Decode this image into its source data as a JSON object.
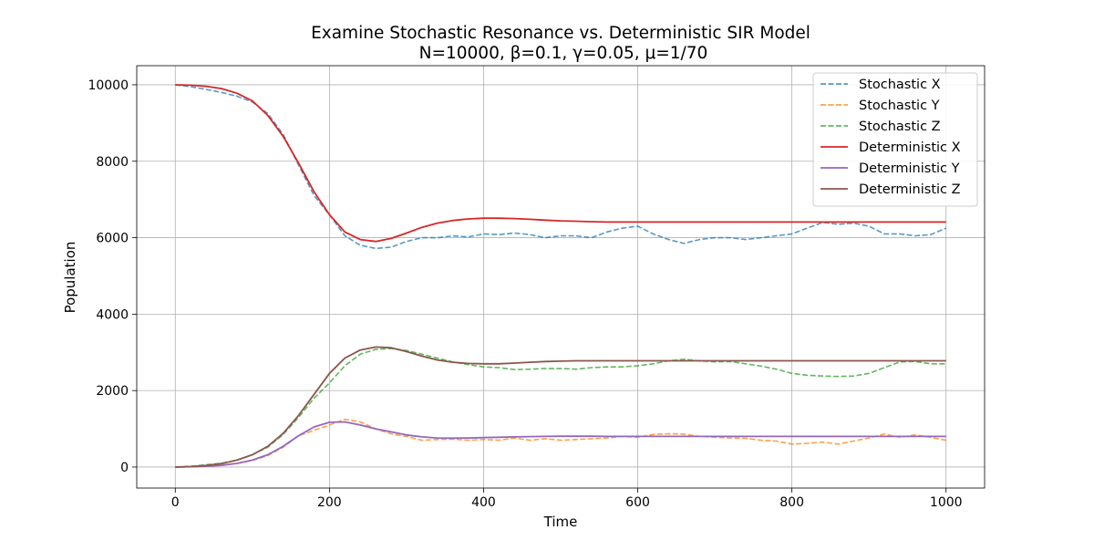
{
  "chart_data": {
    "type": "line",
    "title": "Examine Stochastic Resonance vs. Deterministic SIR Model",
    "subtitle": "N=10000, β=0.1, γ=0.05, μ=1/70",
    "xlabel": "Time",
    "ylabel": "Population",
    "xlim": [
      -50,
      1050
    ],
    "ylim": [
      -550,
      10500
    ],
    "xticks": [
      0,
      200,
      400,
      600,
      800,
      1000
    ],
    "yticks": [
      0,
      2000,
      4000,
      6000,
      8000,
      10000
    ],
    "grid": true,
    "legend_position": "top-right",
    "series": [
      {
        "name": "Stochastic X",
        "color": "#1f77b4",
        "style": "dashed",
        "x": [
          0,
          20,
          40,
          60,
          80,
          100,
          120,
          140,
          160,
          180,
          200,
          220,
          240,
          260,
          280,
          300,
          320,
          340,
          360,
          380,
          400,
          420,
          440,
          460,
          480,
          500,
          520,
          540,
          560,
          580,
          600,
          620,
          640,
          660,
          680,
          700,
          720,
          740,
          760,
          780,
          800,
          820,
          840,
          860,
          880,
          900,
          920,
          940,
          960,
          980,
          1000
        ],
        "y": [
          10000,
          9950,
          9880,
          9800,
          9700,
          9550,
          9250,
          8700,
          7900,
          7100,
          6600,
          6050,
          5800,
          5720,
          5750,
          5900,
          6000,
          6000,
          6050,
          6020,
          6100,
          6080,
          6120,
          6080,
          6000,
          6050,
          6050,
          6000,
          6150,
          6250,
          6300,
          6100,
          5950,
          5850,
          5950,
          6000,
          6000,
          5950,
          6000,
          6050,
          6100,
          6250,
          6400,
          6350,
          6380,
          6300,
          6100,
          6100,
          6050,
          6080,
          6250
        ]
      },
      {
        "name": "Stochastic Y",
        "color": "#ff7f0e",
        "style": "dashed",
        "x": [
          0,
          20,
          40,
          60,
          80,
          100,
          120,
          140,
          160,
          180,
          200,
          220,
          240,
          260,
          280,
          300,
          320,
          340,
          360,
          380,
          400,
          420,
          440,
          460,
          480,
          500,
          520,
          540,
          560,
          580,
          600,
          620,
          640,
          660,
          680,
          700,
          720,
          740,
          760,
          780,
          800,
          820,
          840,
          860,
          880,
          900,
          920,
          940,
          960,
          980,
          1000
        ],
        "y": [
          0,
          10,
          25,
          50,
          100,
          170,
          300,
          520,
          820,
          960,
          1100,
          1250,
          1180,
          1000,
          870,
          800,
          700,
          720,
          730,
          700,
          720,
          700,
          760,
          700,
          740,
          700,
          720,
          740,
          760,
          800,
          780,
          850,
          870,
          860,
          800,
          780,
          760,
          750,
          700,
          680,
          600,
          620,
          650,
          600,
          680,
          760,
          860,
          780,
          840,
          780,
          700
        ]
      },
      {
        "name": "Stochastic Z",
        "color": "#2ca02c",
        "style": "dashed",
        "x": [
          0,
          20,
          40,
          60,
          80,
          100,
          120,
          140,
          160,
          180,
          200,
          220,
          240,
          260,
          280,
          300,
          320,
          340,
          360,
          380,
          400,
          420,
          440,
          460,
          480,
          500,
          520,
          540,
          560,
          580,
          600,
          620,
          640,
          660,
          680,
          700,
          720,
          740,
          760,
          780,
          800,
          820,
          840,
          860,
          880,
          900,
          920,
          940,
          960,
          980,
          1000
        ],
        "y": [
          0,
          20,
          60,
          100,
          180,
          320,
          520,
          850,
          1300,
          1800,
          2200,
          2650,
          2950,
          3080,
          3100,
          3050,
          2950,
          2850,
          2750,
          2680,
          2620,
          2600,
          2550,
          2560,
          2580,
          2580,
          2560,
          2600,
          2620,
          2620,
          2650,
          2700,
          2780,
          2820,
          2780,
          2750,
          2760,
          2700,
          2640,
          2560,
          2450,
          2400,
          2380,
          2370,
          2380,
          2450,
          2600,
          2750,
          2760,
          2700,
          2700
        ]
      },
      {
        "name": "Deterministic X",
        "color": "#d62728",
        "style": "solid",
        "x": [
          0,
          20,
          40,
          60,
          80,
          100,
          120,
          140,
          160,
          180,
          200,
          220,
          240,
          260,
          280,
          300,
          320,
          340,
          360,
          380,
          400,
          420,
          440,
          460,
          480,
          500,
          520,
          540,
          560,
          580,
          600,
          620,
          640,
          660,
          680,
          700,
          720,
          740,
          760,
          780,
          800,
          820,
          840,
          860,
          880,
          900,
          920,
          940,
          960,
          980,
          1000
        ],
        "y": [
          10000,
          9990,
          9960,
          9900,
          9780,
          9580,
          9200,
          8650,
          7950,
          7200,
          6600,
          6150,
          5950,
          5900,
          5980,
          6120,
          6270,
          6380,
          6450,
          6490,
          6510,
          6510,
          6500,
          6480,
          6460,
          6440,
          6430,
          6420,
          6410,
          6410,
          6410,
          6410,
          6410,
          6410,
          6410,
          6410,
          6410,
          6410,
          6410,
          6410,
          6410,
          6410,
          6410,
          6410,
          6410,
          6410,
          6410,
          6410,
          6410,
          6410,
          6410
        ]
      },
      {
        "name": "Deterministic Y",
        "color": "#9467bd",
        "style": "solid",
        "x": [
          0,
          20,
          40,
          60,
          80,
          100,
          120,
          140,
          160,
          180,
          200,
          220,
          240,
          260,
          280,
          300,
          320,
          340,
          360,
          380,
          400,
          420,
          440,
          460,
          480,
          500,
          520,
          540,
          560,
          580,
          600,
          620,
          640,
          660,
          680,
          700,
          720,
          740,
          760,
          780,
          800,
          820,
          840,
          860,
          880,
          900,
          920,
          940,
          960,
          980,
          1000
        ],
        "y": [
          0,
          8,
          20,
          45,
          95,
          180,
          320,
          540,
          820,
          1050,
          1170,
          1180,
          1100,
          1000,
          920,
          840,
          790,
          760,
          755,
          760,
          770,
          780,
          790,
          795,
          800,
          805,
          805,
          805,
          800,
          800,
          800,
          800,
          800,
          800,
          800,
          800,
          800,
          800,
          800,
          800,
          800,
          800,
          800,
          800,
          800,
          800,
          800,
          800,
          800,
          800,
          800
        ]
      },
      {
        "name": "Deterministic Z",
        "color": "#8c564b",
        "style": "solid",
        "x": [
          0,
          20,
          40,
          60,
          80,
          100,
          120,
          140,
          160,
          180,
          200,
          220,
          240,
          260,
          280,
          300,
          320,
          340,
          360,
          380,
          400,
          420,
          440,
          460,
          480,
          500,
          520,
          540,
          560,
          580,
          600,
          620,
          640,
          660,
          680,
          700,
          720,
          740,
          760,
          780,
          800,
          820,
          840,
          860,
          880,
          900,
          920,
          940,
          960,
          980,
          1000
        ],
        "y": [
          0,
          12,
          40,
          90,
          180,
          320,
          540,
          880,
          1350,
          1900,
          2450,
          2850,
          3060,
          3140,
          3120,
          3020,
          2900,
          2800,
          2740,
          2710,
          2700,
          2700,
          2720,
          2740,
          2760,
          2770,
          2780,
          2780,
          2780,
          2780,
          2780,
          2780,
          2780,
          2780,
          2780,
          2780,
          2780,
          2780,
          2780,
          2780,
          2780,
          2780,
          2780,
          2780,
          2780,
          2780,
          2780,
          2780,
          2780,
          2780,
          2780
        ]
      }
    ]
  }
}
